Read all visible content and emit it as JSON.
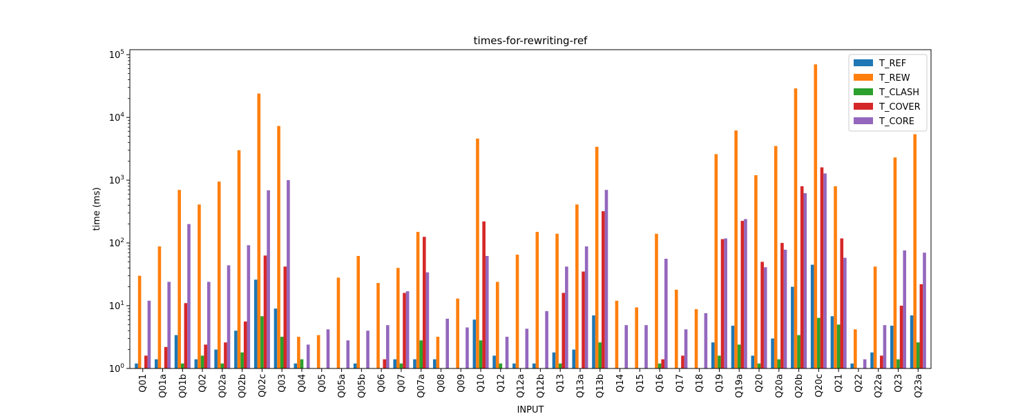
{
  "chart_data": {
    "type": "bar",
    "title": "times-for-rewriting-ref",
    "xlabel": "INPUT",
    "ylabel": "time (ms)",
    "yscale": "log",
    "ylim": [
      1,
      120000
    ],
    "yticks": [
      1,
      10,
      100,
      1000,
      10000,
      100000
    ],
    "ytick_labels": [
      {
        "base": "10",
        "exp": "0"
      },
      {
        "base": "10",
        "exp": "1"
      },
      {
        "base": "10",
        "exp": "2"
      },
      {
        "base": "10",
        "exp": "3"
      },
      {
        "base": "10",
        "exp": "4"
      },
      {
        "base": "10",
        "exp": "5"
      }
    ],
    "legend_position": "top-right",
    "grid": false,
    "categories": [
      "Q01",
      "Q01a",
      "Q01b",
      "Q02",
      "Q02a",
      "Q02b",
      "Q02c",
      "Q03",
      "Q04",
      "Q05",
      "Q05a",
      "Q05b",
      "Q06",
      "Q07",
      "Q07a",
      "Q08",
      "Q09",
      "Q10",
      "Q12",
      "Q12a",
      "Q12b",
      "Q13",
      "Q13a",
      "Q13b",
      "Q14",
      "Q15",
      "Q16",
      "Q17",
      "Q18",
      "Q19",
      "Q19a",
      "Q20",
      "Q20a",
      "Q20b",
      "Q20c",
      "Q21",
      "Q22",
      "Q22a",
      "Q23",
      "Q23a"
    ],
    "series": [
      {
        "name": "T_REF",
        "color": "#1f77b4",
        "values": [
          1.2,
          1.4,
          3.4,
          1.4,
          2.0,
          4.0,
          26,
          9,
          1.2,
          null,
          null,
          1.2,
          null,
          1.4,
          1.4,
          1.4,
          null,
          6,
          1.6,
          1.2,
          1.2,
          1.8,
          2.0,
          7,
          null,
          null,
          null,
          null,
          null,
          2.6,
          4.8,
          1.6,
          3.0,
          20,
          45,
          6.8,
          1.2,
          1.8,
          4.8,
          7
        ]
      },
      {
        "name": "T_REW",
        "color": "#ff7f0e",
        "values": [
          30,
          88,
          700,
          410,
          950,
          3000,
          24000,
          7300,
          3.2,
          3.4,
          28,
          62,
          23,
          40,
          150,
          3.2,
          13,
          4600,
          24,
          65,
          150,
          140,
          410,
          3400,
          12,
          9.4,
          140,
          18,
          8.8,
          2600,
          6200,
          1200,
          3500,
          29000,
          70000,
          800,
          4.2,
          42,
          2300,
          5400
        ]
      },
      {
        "name": "T_CLASH",
        "color": "#2ca02c",
        "values": [
          null,
          null,
          1.2,
          1.6,
          1.2,
          1.8,
          6.8,
          3.2,
          1.4,
          null,
          null,
          null,
          null,
          1.2,
          2.8,
          null,
          null,
          2.8,
          1.2,
          null,
          null,
          1.2,
          null,
          2.6,
          null,
          null,
          1.2,
          null,
          null,
          1.6,
          2.4,
          1.2,
          1.4,
          3.4,
          6.4,
          5.0,
          null,
          null,
          1.4,
          2.6
        ]
      },
      {
        "name": "T_COVER",
        "color": "#d62728",
        "values": [
          1.6,
          2.2,
          11,
          2.4,
          2.6,
          5.6,
          63,
          42,
          null,
          null,
          null,
          null,
          1.4,
          16,
          125,
          null,
          null,
          220,
          null,
          null,
          null,
          16,
          35,
          320,
          null,
          null,
          1.4,
          1.6,
          null,
          115,
          225,
          50,
          100,
          800,
          1600,
          118,
          null,
          1.6,
          10,
          22
        ]
      },
      {
        "name": "T_CORE",
        "color": "#9467bd",
        "values": [
          12,
          24,
          200,
          24,
          44,
          92,
          690,
          1000,
          2.4,
          4.2,
          2.8,
          4.0,
          4.9,
          17,
          34,
          6.2,
          4.5,
          62,
          3.2,
          4.3,
          8.2,
          42,
          88,
          700,
          4.9,
          4.9,
          56,
          4.2,
          7.6,
          118,
          240,
          41,
          78,
          620,
          1280,
          58,
          1.4,
          4.9,
          76,
          70
        ]
      }
    ]
  }
}
